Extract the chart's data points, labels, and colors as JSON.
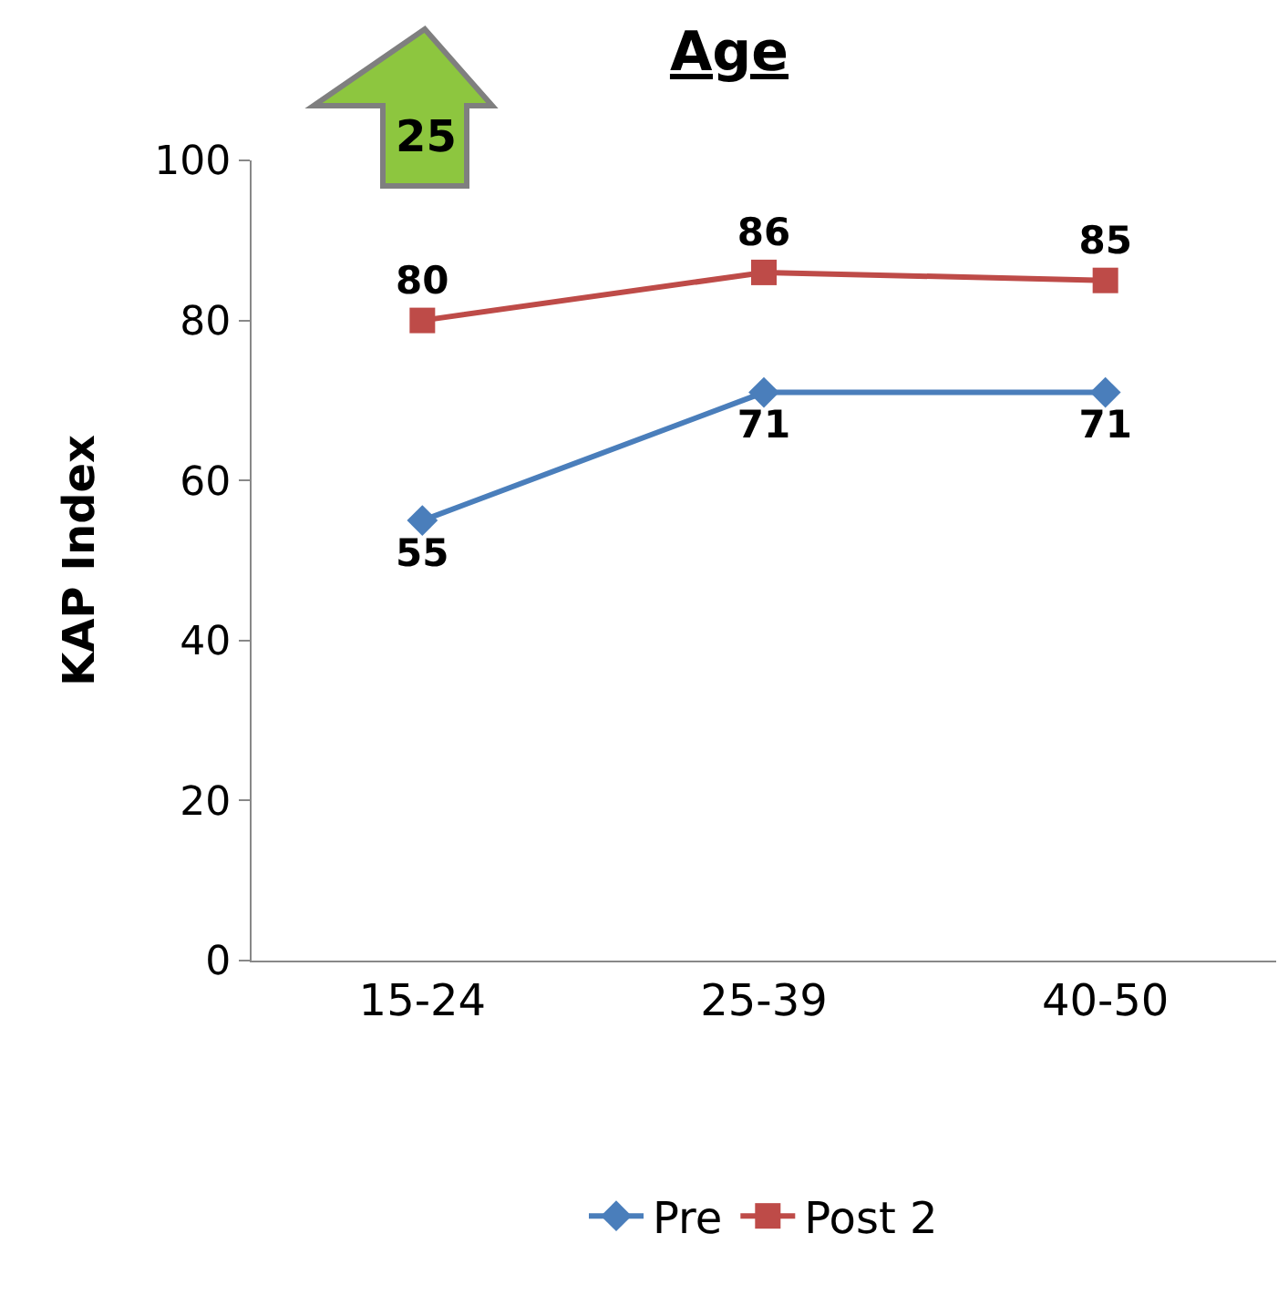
{
  "chart_data": {
    "type": "line",
    "title": "Age",
    "ylabel": "KAP Index",
    "categories": [
      "15-24",
      "25-39",
      "40-50"
    ],
    "series": [
      {
        "name": "Pre",
        "color": "#4a7ebb",
        "values": [
          55,
          71,
          71
        ],
        "marker": "diamond"
      },
      {
        "name": "Post 2",
        "color": "#be4b48",
        "values": [
          80,
          86,
          85
        ],
        "marker": "square"
      }
    ],
    "ylim": [
      0,
      100
    ],
    "yticks": [
      0,
      20,
      40,
      60,
      80,
      100
    ],
    "legend": "bottom",
    "data_labels": true,
    "annotations": [
      "25"
    ]
  }
}
